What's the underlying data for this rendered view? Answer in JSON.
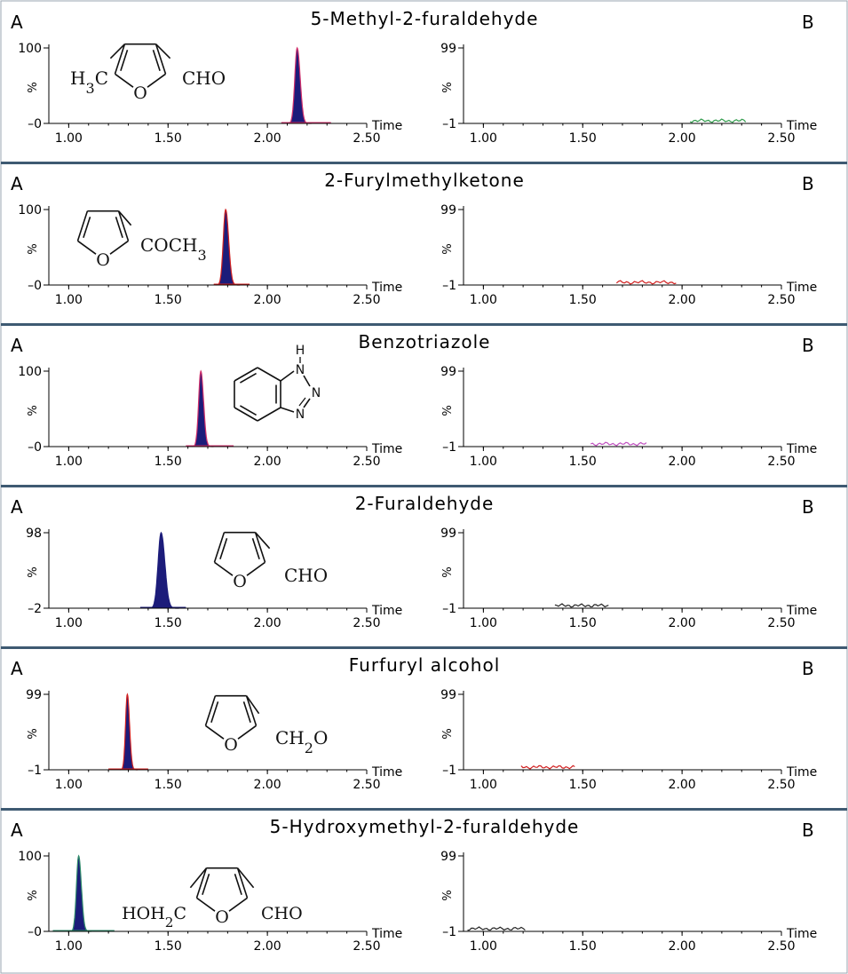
{
  "chart_data": [
    {
      "type": "line",
      "title": "5-Methyl-2-furaldehyde",
      "panel_labels": [
        "A",
        "B"
      ],
      "xlabel": "Time",
      "xlim": [
        0.9,
        2.5
      ],
      "x_ticks": [
        "1.00",
        "1.50",
        "2.00",
        "2.50"
      ],
      "structure": {
        "left_label": "H3C",
        "right_label": "CHO",
        "ring_atom": "O"
      },
      "panel_a": {
        "ylabel": "%",
        "y_ticks": [
          "100",
          "0"
        ],
        "ylim": [
          0,
          100
        ],
        "peak_center": 2.15,
        "peak_width": 0.012,
        "trace_range": [
          2.07,
          2.32
        ],
        "fill_color": "#1c1c7a",
        "line_color": "#d02e6a"
      },
      "panel_b": {
        "ylabel": "%",
        "y_ticks": [
          "99",
          "-1"
        ],
        "ylim": [
          -1,
          99
        ],
        "trace_range": [
          2.04,
          2.32
        ],
        "line_color": "#2e9a4a"
      }
    },
    {
      "type": "line",
      "title": "2-Furylmethylketone",
      "panel_labels": [
        "A",
        "B"
      ],
      "xlabel": "Time",
      "xlim": [
        0.9,
        2.5
      ],
      "x_ticks": [
        "1.00",
        "1.50",
        "2.00",
        "2.50"
      ],
      "structure": {
        "right_label": "COCH3",
        "ring_atom": "O"
      },
      "panel_a": {
        "ylabel": "%",
        "y_ticks": [
          "100",
          "0"
        ],
        "ylim": [
          0,
          100
        ],
        "peak_center": 1.79,
        "peak_width": 0.012,
        "trace_range": [
          1.73,
          1.91
        ],
        "fill_color": "#1c1c7a",
        "line_color": "#d02020"
      },
      "panel_b": {
        "ylabel": "%",
        "y_ticks": [
          "99",
          "-1"
        ],
        "ylim": [
          -1,
          99
        ],
        "trace_range": [
          1.67,
          1.97
        ],
        "line_color": "#d02020"
      }
    },
    {
      "type": "line",
      "title": "Benzotriazole",
      "panel_labels": [
        "A",
        "B"
      ],
      "xlabel": "Time",
      "xlim": [
        0.9,
        2.5
      ],
      "x_ticks": [
        "1.00",
        "1.50",
        "2.00",
        "2.50"
      ],
      "structure": {
        "atoms": [
          "H",
          "N",
          "N",
          "N"
        ]
      },
      "panel_a": {
        "ylabel": "%",
        "y_ticks": [
          "100",
          "0"
        ],
        "ylim": [
          0,
          100
        ],
        "peak_center": 1.665,
        "peak_width": 0.011,
        "trace_range": [
          1.59,
          1.83
        ],
        "fill_color": "#1c1c7a",
        "line_color": "#d02e6a"
      },
      "panel_b": {
        "ylabel": "%",
        "y_ticks": [
          "99",
          "-1"
        ],
        "ylim": [
          -1,
          99
        ],
        "trace_range": [
          1.54,
          1.82
        ],
        "line_color": "#c050c0"
      }
    },
    {
      "type": "line",
      "title": "2-Furaldehyde",
      "panel_labels": [
        "A",
        "B"
      ],
      "xlabel": "Time",
      "xlim": [
        0.9,
        2.5
      ],
      "x_ticks": [
        "1.00",
        "1.50",
        "2.00",
        "2.50"
      ],
      "structure": {
        "right_label": "CHO",
        "ring_atom": "O"
      },
      "panel_a": {
        "ylabel": "%",
        "y_ticks": [
          "98",
          "-2"
        ],
        "ylim": [
          -2,
          98
        ],
        "peak_center": 1.465,
        "peak_width": 0.015,
        "trace_range": [
          1.36,
          1.59
        ],
        "fill_color": "#1c1c7a",
        "line_color": "#1c1c7a"
      },
      "panel_b": {
        "ylabel": "%",
        "y_ticks": [
          "99",
          "-1"
        ],
        "ylim": [
          -1,
          99
        ],
        "trace_range": [
          1.36,
          1.63
        ],
        "line_color": "#222222"
      }
    },
    {
      "type": "line",
      "title": "Furfuryl alcohol",
      "panel_labels": [
        "A",
        "B"
      ],
      "xlabel": "Time",
      "xlim": [
        0.9,
        2.5
      ],
      "x_ticks": [
        "1.00",
        "1.50",
        "2.00",
        "2.50"
      ],
      "structure": {
        "right_label": "CH2O",
        "ring_atom": "O"
      },
      "panel_a": {
        "ylabel": "%",
        "y_ticks": [
          "99",
          "-1"
        ],
        "ylim": [
          -1,
          99
        ],
        "peak_center": 1.295,
        "peak_width": 0.009,
        "trace_range": [
          1.2,
          1.4
        ],
        "fill_color": "#1c1c7a",
        "line_color": "#d02020"
      },
      "panel_b": {
        "ylabel": "%",
        "y_ticks": [
          "99",
          "-1"
        ],
        "ylim": [
          -1,
          99
        ],
        "trace_range": [
          1.19,
          1.46
        ],
        "line_color": "#d02020"
      }
    },
    {
      "type": "line",
      "title": "5-Hydroxymethyl-2-furaldehyde",
      "panel_labels": [
        "A",
        "B"
      ],
      "xlabel": "Time",
      "xlim": [
        0.9,
        2.5
      ],
      "x_ticks": [
        "1.00",
        "1.50",
        "2.00",
        "2.50"
      ],
      "structure": {
        "left_label": "HOH2C",
        "right_label": "CHO",
        "ring_atom": "O"
      },
      "panel_a": {
        "ylabel": "%",
        "y_ticks": [
          "100",
          "0"
        ],
        "ylim": [
          0,
          100
        ],
        "peak_center": 1.05,
        "peak_width": 0.011,
        "trace_range": [
          0.92,
          1.23
        ],
        "fill_color": "#1c1c7a",
        "line_color": "#2e8a6a"
      },
      "panel_b": {
        "ylabel": "%",
        "y_ticks": [
          "99",
          "-1"
        ],
        "ylim": [
          -1,
          99
        ],
        "trace_range": [
          0.92,
          1.21
        ],
        "line_color": "#222222"
      }
    }
  ]
}
